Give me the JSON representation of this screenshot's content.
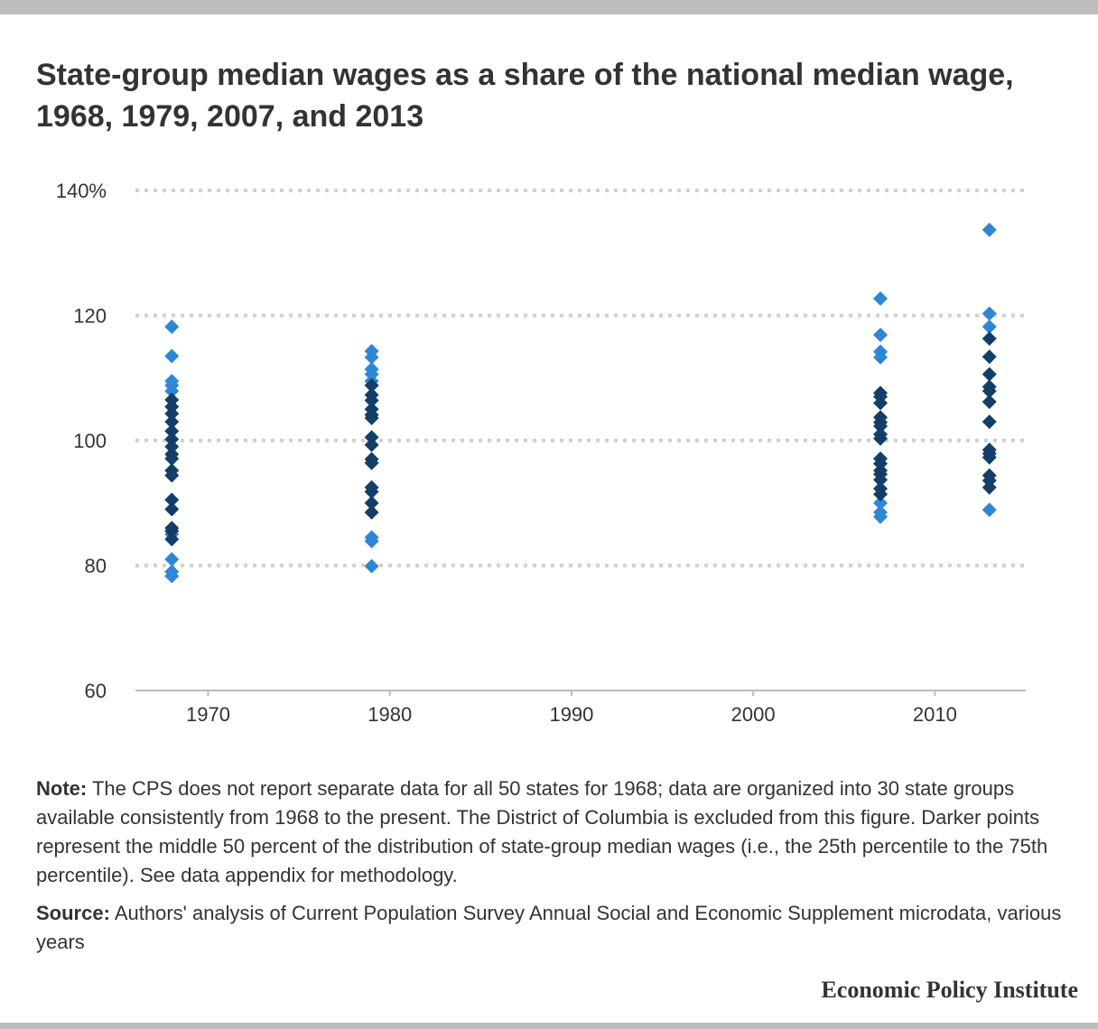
{
  "title": "State-group median wages as a share of the national median wage, 1968, 1979, 2007, and 2013",
  "note_label": "Note:",
  "note_text": "The CPS does not report separate data for all 50 states for 1968; data are organized into 30 state groups available consistently from 1968 to the present. The District of Columbia is excluded from this figure. Darker points represent the middle 50 percent of the distribution of state-group median wages (i.e., the 25th percentile to the 75th percentile). See data appendix for methodology.",
  "source_label": "Source:",
  "source_text": "Authors' analysis of Current Population Survey Annual Social and Economic Supplement microdata, various years",
  "brand": "Economic Policy Institute",
  "colors": {
    "outer_quartiles": "#2e86d6",
    "middle_50_percent": "#133e68",
    "gridline": "#d0d0d0",
    "axis": "#bdbdbd"
  },
  "chart_data": {
    "type": "scatter",
    "marker": "diamond",
    "xlim": [
      1966,
      2015
    ],
    "ylim": [
      60,
      140
    ],
    "x_ticks": [
      1970,
      1980,
      1990,
      2000,
      2010
    ],
    "x_tick_labels": [
      "1970",
      "1980",
      "1990",
      "2000",
      "2010"
    ],
    "y_ticks": [
      140,
      120,
      100,
      80,
      60
    ],
    "y_tick_labels": [
      "140%",
      "120",
      "100",
      "80",
      "60"
    ],
    "grid": "horizontal dotted",
    "groups": [
      {
        "x": 1968,
        "outer": [
          118.2,
          113.5,
          109.5,
          108.8,
          107.9,
          85.0,
          81.0,
          79.0,
          78.3
        ],
        "middle": [
          106.5,
          105.4,
          104.3,
          103.0,
          101.5,
          100.2,
          99.0,
          97.8,
          97.1,
          95.2,
          94.4,
          90.5,
          89.0,
          86.0,
          85.5,
          84.2
        ]
      },
      {
        "x": 1979,
        "outer": [
          114.3,
          113.3,
          111.4,
          110.6,
          109.5,
          84.5,
          83.9,
          79.9
        ],
        "middle": [
          108.8,
          107.3,
          106.4,
          105.0,
          104.1,
          103.6,
          100.5,
          99.3,
          97.0,
          96.4,
          92.5,
          91.8,
          90.0,
          88.5
        ]
      },
      {
        "x": 2007,
        "outer": [
          122.7,
          116.9,
          114.2,
          113.3,
          90.0,
          88.5,
          87.8
        ],
        "middle": [
          107.6,
          107.0,
          106.0,
          103.7,
          102.9,
          102.3,
          101.0,
          100.3,
          97.1,
          96.3,
          95.2,
          94.6,
          93.7,
          92.3,
          91.4
        ]
      },
      {
        "x": 2013,
        "outer": [
          133.7,
          120.3,
          118.2,
          88.9
        ],
        "middle": [
          116.3,
          113.4,
          110.6,
          108.6,
          107.9,
          106.2,
          103.0,
          98.5,
          97.9,
          97.3,
          94.4,
          93.6,
          92.5
        ]
      }
    ]
  }
}
